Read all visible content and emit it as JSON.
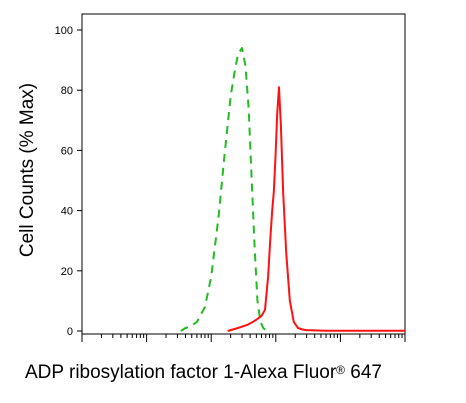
{
  "chart_data": {
    "type": "line",
    "title": "",
    "xlabel": {
      "text": "ADP ribosylation factor 1-Alexa Fluor",
      "mark": "®",
      "suffix": " 647"
    },
    "ylabel": "Cell Counts (% Max)",
    "x_scale": "log",
    "xlim": [
      1,
      100000
    ],
    "ylim": [
      0,
      100
    ],
    "yticks": [
      0,
      20,
      40,
      60,
      80,
      100
    ],
    "ytick_labels": [
      "0",
      "20",
      "40",
      "60",
      "80",
      "100"
    ],
    "grid": false,
    "legend": "none",
    "series": [
      {
        "color": "#22bb22",
        "style": "dashed",
        "x": [
          34,
          40,
          48,
          60,
          80,
          100,
          130,
          160,
          200,
          230,
          260,
          300,
          340,
          380,
          420,
          470,
          520,
          580,
          640,
          720
        ],
        "y": [
          0,
          1,
          1.5,
          3,
          8,
          18,
          38,
          58,
          78,
          86,
          92,
          94,
          88,
          74,
          52,
          28,
          10,
          3,
          1,
          0
        ]
      },
      {
        "color": "#ff1111",
        "style": "solid",
        "x": [
          180,
          260,
          360,
          440,
          520,
          600,
          680,
          760,
          830,
          880,
          930,
          990,
          1050,
          1120,
          1200,
          1300,
          1450,
          1650,
          1900,
          2200,
          2600,
          3000,
          4000,
          6000,
          10000,
          30000,
          100000
        ],
        "y": [
          0,
          1,
          2,
          3,
          4,
          5,
          7,
          18,
          32,
          40,
          46,
          58,
          72,
          81,
          68,
          46,
          26,
          10,
          3,
          1,
          0.5,
          0.3,
          0.2,
          0.1,
          0.1,
          0.1,
          0.1
        ]
      }
    ]
  }
}
